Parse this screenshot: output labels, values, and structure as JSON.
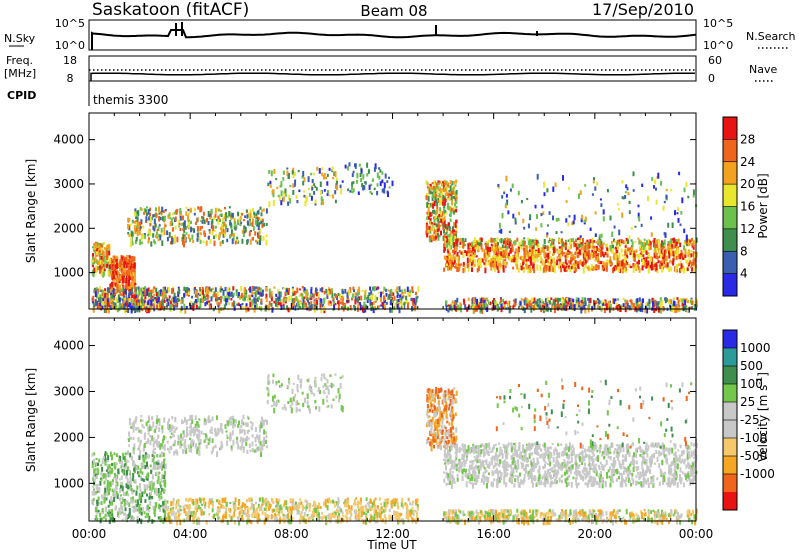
{
  "header": {
    "station": "Saskatoon (fitACF)",
    "beam": "Beam 08",
    "date": "17/Sep/2010"
  },
  "aux_panels": {
    "nsky": {
      "left_label": "N.Sky",
      "right_label": "N.Search",
      "left_ticks": [
        "10^5",
        "10^0"
      ],
      "right_ticks": [
        "10^5",
        "10^0"
      ]
    },
    "freq": {
      "left_label_1": "Freq.",
      "left_label_2": "[MHz]",
      "right_label": "Nave",
      "left_ticks": [
        "18",
        "8"
      ],
      "right_ticks": [
        "60",
        "0"
      ]
    },
    "cpid": {
      "left_label": "CPID",
      "mode": "themis 3300"
    }
  },
  "colors": {
    "power_scale": [
      "#2a2ae6",
      "#3a5fb0",
      "#3e8f4e",
      "#6cc14e",
      "#e8e62e",
      "#f2a21f",
      "#f0651d",
      "#e81414"
    ],
    "velocity_scale": [
      "#e81414",
      "#f0651d",
      "#f5a623",
      "#f5c96b",
      "#c8c8c8",
      "#c8c8c8",
      "#74c74a",
      "#3e8f4e",
      "#2d9a9a",
      "#2a2ae6"
    ]
  },
  "chart_data": [
    {
      "type": "heatmap",
      "title": "",
      "xlabel": "Time UT",
      "ylabel": "Slant Range [km]",
      "xlim": [
        "00:00",
        "24:00"
      ],
      "ylim": [
        180,
        4600
      ],
      "x_ticks": [
        "00:00",
        "04:00",
        "08:00",
        "12:00",
        "16:00",
        "20:00",
        "00:00"
      ],
      "y_ticks": [
        1000,
        2000,
        3000,
        4000
      ],
      "colorbar": {
        "label": "Power [dB]",
        "range": [
          0,
          32
        ],
        "ticks": [
          4,
          8,
          12,
          16,
          20,
          24,
          28
        ]
      }
    },
    {
      "type": "heatmap",
      "title": "",
      "xlabel": "Time UT",
      "ylabel": "Slant Range [km]",
      "xlim": [
        "00:00",
        "24:00"
      ],
      "ylim": [
        180,
        4600
      ],
      "x_ticks": [
        "00:00",
        "04:00",
        "08:00",
        "12:00",
        "16:00",
        "20:00",
        "00:00"
      ],
      "y_ticks": [
        1000,
        2000,
        3000,
        4000
      ],
      "colorbar": {
        "label": "Velocity [m s",
        "label_sup": "-1",
        "label_end": "]",
        "ticks": [
          "1000",
          "500",
          "100",
          "25",
          "-25",
          "-100",
          "-500",
          "-1000"
        ]
      }
    }
  ]
}
